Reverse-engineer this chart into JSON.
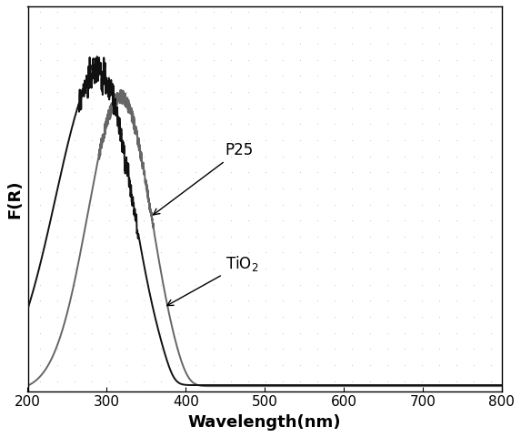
{
  "title": "",
  "xlabel": "Wavelength(nm)",
  "ylabel": "F(R)",
  "xlim": [
    200,
    800
  ],
  "ylim": [
    0,
    1.15
  ],
  "background_color": "#ffffff",
  "dot_color": "#bbbbbb",
  "p25_color": "#111111",
  "tio2_color": "#666666",
  "annotation_fontsize": 12,
  "p25_peak": 290,
  "p25_sigma": 42,
  "p25_drop": 383,
  "tio2_peak": 318,
  "tio2_sigma": 38,
  "tio2_drop": 403,
  "xticks": [
    200,
    300,
    400,
    500,
    600,
    700,
    800
  ]
}
